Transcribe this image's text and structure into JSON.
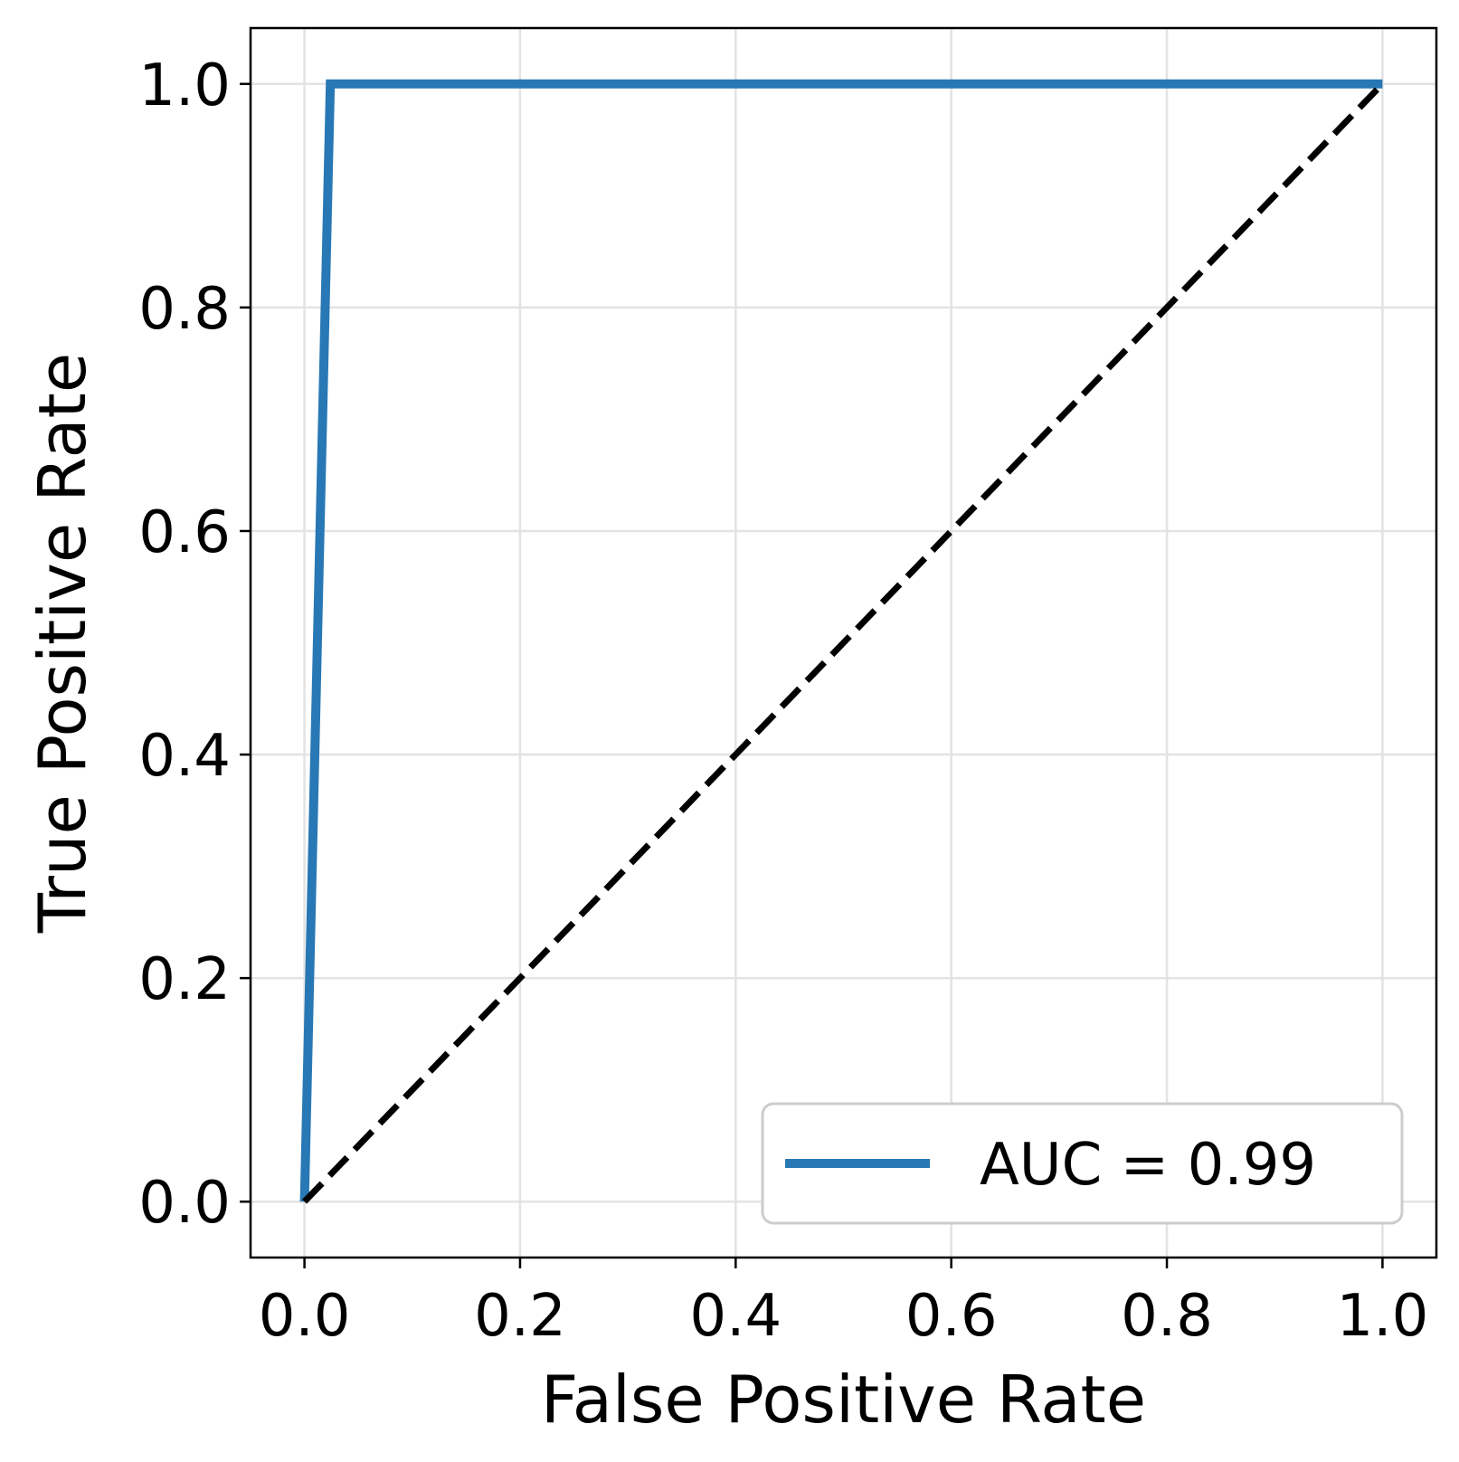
{
  "chart_data": {
    "type": "line",
    "xlabel": "False Positive Rate",
    "ylabel": "True Positive Rate",
    "xlim": [
      -0.05,
      1.05
    ],
    "ylim": [
      -0.05,
      1.05
    ],
    "xticks": [
      0.0,
      0.2,
      0.4,
      0.6,
      0.8,
      1.0
    ],
    "xtick_labels": [
      "0.0",
      "0.2",
      "0.4",
      "0.6",
      "0.8",
      "1.0"
    ],
    "yticks": [
      0.0,
      0.2,
      0.4,
      0.6,
      0.8,
      1.0
    ],
    "ytick_labels": [
      "0.0",
      "0.2",
      "0.4",
      "0.6",
      "0.8",
      "1.0"
    ],
    "grid": true,
    "legend_position": "lower-right",
    "series": [
      {
        "name": "AUC = 0.99",
        "color": "#2878b5",
        "line_style": "solid",
        "x": [
          0.0,
          0.024,
          1.0
        ],
        "y": [
          0.0,
          1.0,
          1.0
        ]
      },
      {
        "color": "#000000",
        "line_style": "dashed",
        "x": [
          0.0,
          1.0
        ],
        "y": [
          0.0,
          1.0
        ]
      }
    ]
  }
}
